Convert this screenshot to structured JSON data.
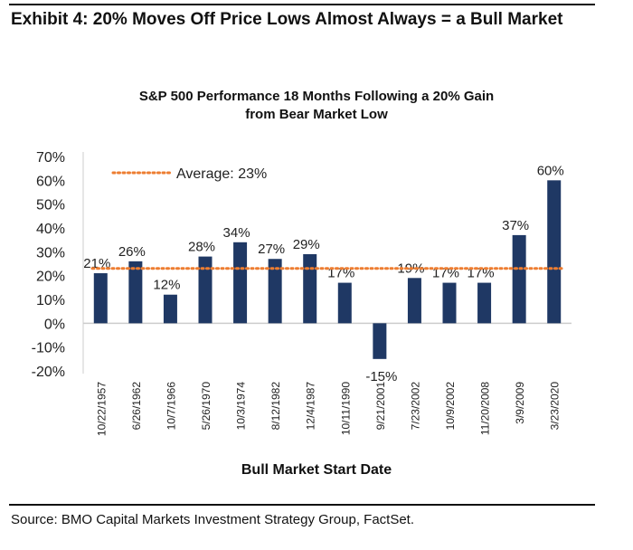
{
  "header": {
    "title": "Exhibit 4: 20% Moves Off Price Lows Almost Always = a Bull Market"
  },
  "footer": {
    "source": "Source: BMO Capital Markets Investment Strategy Group, FactSet."
  },
  "chart_data": {
    "type": "bar",
    "title": "S&P 500 Performance 18 Months Following a 20% Gain from Bear Market Low",
    "xlabel": "Bull Market Start Date",
    "ylabel": "",
    "ylim": [
      -20,
      70
    ],
    "yticks": [
      "-20%",
      "-10%",
      "0%",
      "10%",
      "20%",
      "30%",
      "40%",
      "50%",
      "60%",
      "70%"
    ],
    "categories": [
      "10/22/1957",
      "6/26/1962",
      "10/7/1966",
      "5/26/1970",
      "10/3/1974",
      "8/12/1982",
      "12/4/1987",
      "10/11/1990",
      "9/21/2001",
      "7/23/2002",
      "10/9/2002",
      "11/20/2008",
      "3/9/2009",
      "3/23/2020"
    ],
    "values": [
      21,
      26,
      12,
      28,
      34,
      27,
      29,
      17,
      -15,
      19,
      17,
      17,
      37,
      60
    ],
    "data_labels": [
      "21%",
      "26%",
      "12%",
      "28%",
      "34%",
      "27%",
      "29%",
      "17%",
      "-15%",
      "19%",
      "17%",
      "17%",
      "37%",
      "60%"
    ],
    "average": {
      "label": "Average: 23%",
      "value": 23,
      "style": "dotted"
    },
    "colors": {
      "bar": "#1f3864",
      "average": "#ed7d31"
    },
    "grid": false
  }
}
